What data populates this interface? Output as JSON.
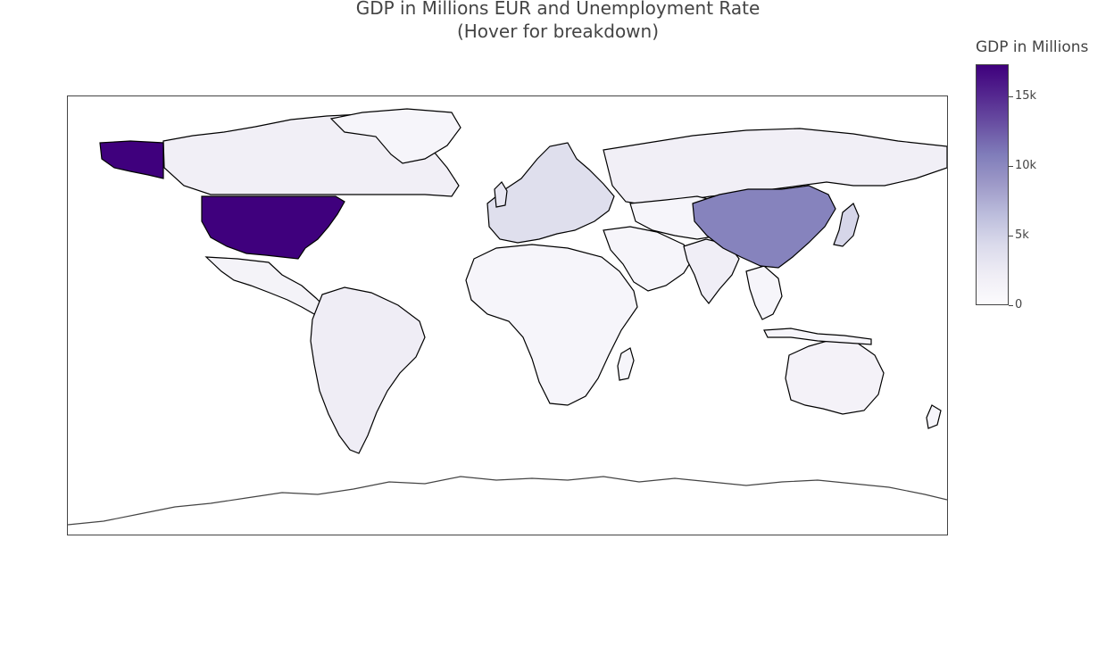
{
  "title_line1": "GDP in Millions EUR and Unemployment Rate",
  "title_line2": "(Hover for breakdown)",
  "colorbar": {
    "title": "GDP in Millions",
    "min": 0,
    "max": 17300,
    "colors": [
      "#fcfbfd",
      "#efedf5",
      "#dadaeb",
      "#bcbddc",
      "#9e9ac8",
      "#807dba",
      "#6a51a3",
      "#54278f",
      "#3f007d"
    ],
    "ticks": [
      {
        "value": 0,
        "label": "0"
      },
      {
        "value": 5000,
        "label": "5k"
      },
      {
        "value": 10000,
        "label": "10k"
      },
      {
        "value": 15000,
        "label": "15k"
      }
    ]
  },
  "map": {
    "projection": "equirectangular",
    "lon_range": [
      -180,
      180
    ],
    "lat_range": [
      -90,
      90
    ],
    "highlighted_regions": [
      {
        "name": "United States",
        "gdp": 17300
      },
      {
        "name": "China",
        "gdp": 10400
      },
      {
        "name": "Japan",
        "gdp": 4600
      },
      {
        "name": "Germany",
        "gdp": 3800
      },
      {
        "name": "United Kingdom",
        "gdp": 2900
      },
      {
        "name": "France",
        "gdp": 2800
      },
      {
        "name": "Brazil",
        "gdp": 2200
      },
      {
        "name": "Canada",
        "gdp": 1800
      },
      {
        "name": "Russia",
        "gdp": 1900
      },
      {
        "name": "India",
        "gdp": 2000
      },
      {
        "name": "Australia",
        "gdp": 1400
      },
      {
        "name": "Mexico",
        "gdp": 1300
      }
    ]
  }
}
